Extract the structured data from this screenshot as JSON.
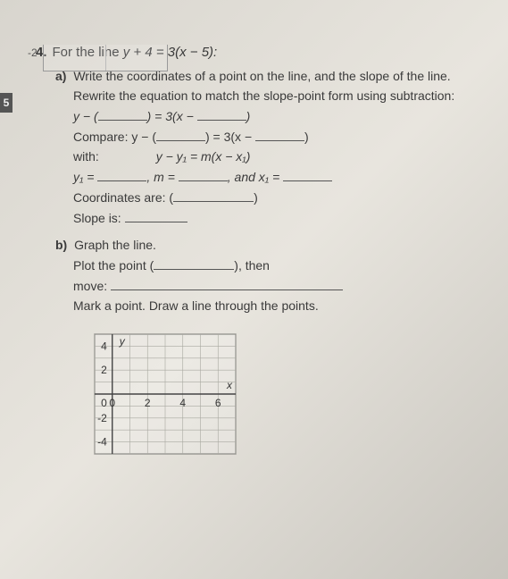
{
  "top_fragment_tick": "-2",
  "side_tab": "5",
  "question": {
    "number": "4.",
    "prefix": "For the line ",
    "equation": "y + 4 = 3(x − 5):"
  },
  "part_a": {
    "label": "a)",
    "prompt": "Write the coordinates of a point on the line, and the slope of the line.",
    "rewrite": "Rewrite the equation to match the slope-point form using subtraction:",
    "eq1_lhs": "y − (",
    "eq1_mid": ") = 3(x −",
    "eq1_end": ")",
    "compare": "Compare: y − (",
    "compare_mid": ") = 3(x −",
    "compare_end": ")",
    "with": "with:",
    "slope_point": "y − y₁ = m(x − x₁)",
    "y1_eq": "y₁ =",
    "m_eq": ", m =",
    "x1_eq": ", and x₁ =",
    "coords": "Coordinates are: (",
    "coords_end": ")",
    "slope_is": "Slope is:"
  },
  "part_b": {
    "label": "b)",
    "prompt": "Graph the line.",
    "plot": "Plot the point (",
    "plot_end": "), then",
    "move": "move:",
    "mark": "Mark a point. Draw a line through the points."
  },
  "chart": {
    "type": "grid",
    "width": 190,
    "height": 150,
    "x_range": [
      -1,
      7
    ],
    "y_range": [
      -5,
      5
    ],
    "x_ticks": [
      0,
      2,
      4,
      6
    ],
    "y_ticks": [
      -4,
      -2,
      2,
      4
    ],
    "x_label": "x",
    "y_label": "y",
    "grid_color": "#a8a8a0",
    "axis_color": "#444",
    "text_color": "#333",
    "background": "rgba(255,255,255,0.2)",
    "font_size": 12
  }
}
